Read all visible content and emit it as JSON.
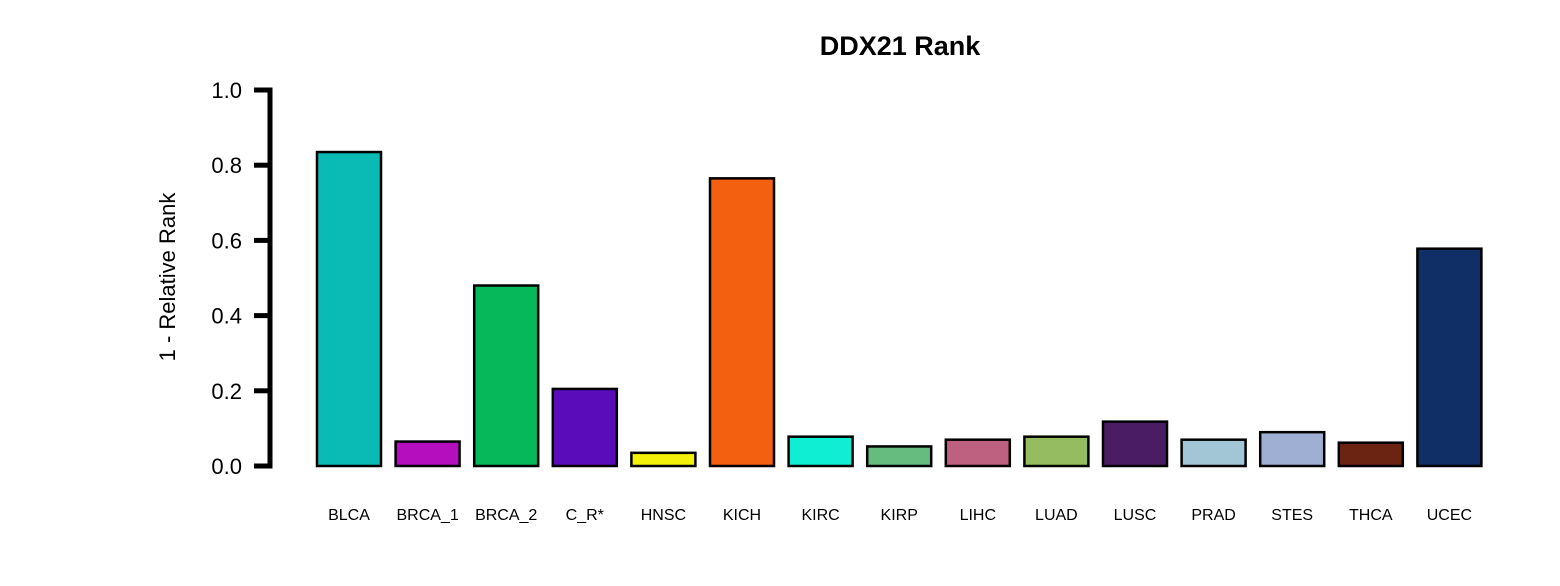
{
  "chart_data": {
    "type": "bar",
    "title": "DDX21 Rank",
    "xlabel": "",
    "ylabel": "1 - Relative Rank",
    "ylim": [
      0,
      1.0
    ],
    "yticks": [
      "0.0",
      "0.2",
      "0.4",
      "0.6",
      "0.8",
      "1.0"
    ],
    "grid": false,
    "legend": "none",
    "categories": [
      "BLCA",
      "BRCA_1",
      "BRCA_2",
      "C_R*",
      "HNSC",
      "KICH",
      "KIRC",
      "KIRP",
      "LIHC",
      "LUAD",
      "LUSC",
      "PRAD",
      "STES",
      "THCA",
      "UCEC"
    ],
    "values": [
      0.835,
      0.065,
      0.48,
      0.205,
      0.035,
      0.765,
      0.078,
      0.052,
      0.07,
      0.078,
      0.118,
      0.07,
      0.09,
      0.062,
      0.578
    ],
    "colors": [
      "#0ABAB5",
      "#B40EBE",
      "#07B85A",
      "#5B0CBA",
      "#F3F00A",
      "#F26010",
      "#0FEDD2",
      "#66BB7E",
      "#BE6180",
      "#96BC62",
      "#4A1C63",
      "#A2C6D5",
      "#9FAED3",
      "#6B2412",
      "#0F2F66"
    ]
  }
}
